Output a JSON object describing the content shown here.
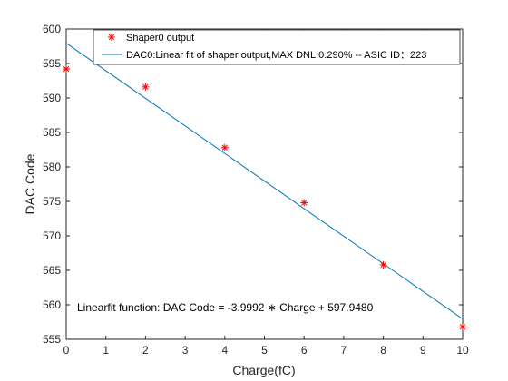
{
  "chart_data": {
    "type": "scatter",
    "xlabel": "Charge(fC)",
    "ylabel": "DAC Code",
    "xlim": [
      0,
      10
    ],
    "ylim": [
      555,
      600
    ],
    "xticks": [
      0,
      1,
      2,
      3,
      4,
      5,
      6,
      7,
      8,
      9,
      10
    ],
    "yticks": [
      555,
      560,
      565,
      570,
      575,
      580,
      585,
      590,
      595,
      600
    ],
    "grid": false,
    "legend_position": "top-right",
    "series": [
      {
        "name": "Shaper0 output",
        "kind": "scatter",
        "marker": "asterisk",
        "color": "#ff0000",
        "x": [
          0,
          2,
          4,
          6,
          8,
          10
        ],
        "y": [
          594.2,
          591.6,
          582.8,
          574.8,
          565.8,
          556.8
        ]
      },
      {
        "name": "DAC0:Linear fit of shaper output,MAX DNL:0.290% -- ASIC ID：223",
        "kind": "line",
        "color": "#0072bd",
        "x": [
          0,
          10
        ],
        "y": [
          597.948,
          557.956
        ]
      }
    ],
    "annotation": "Linearfit function: DAC Code = -3.9992 ∗ Charge + 597.9480"
  }
}
